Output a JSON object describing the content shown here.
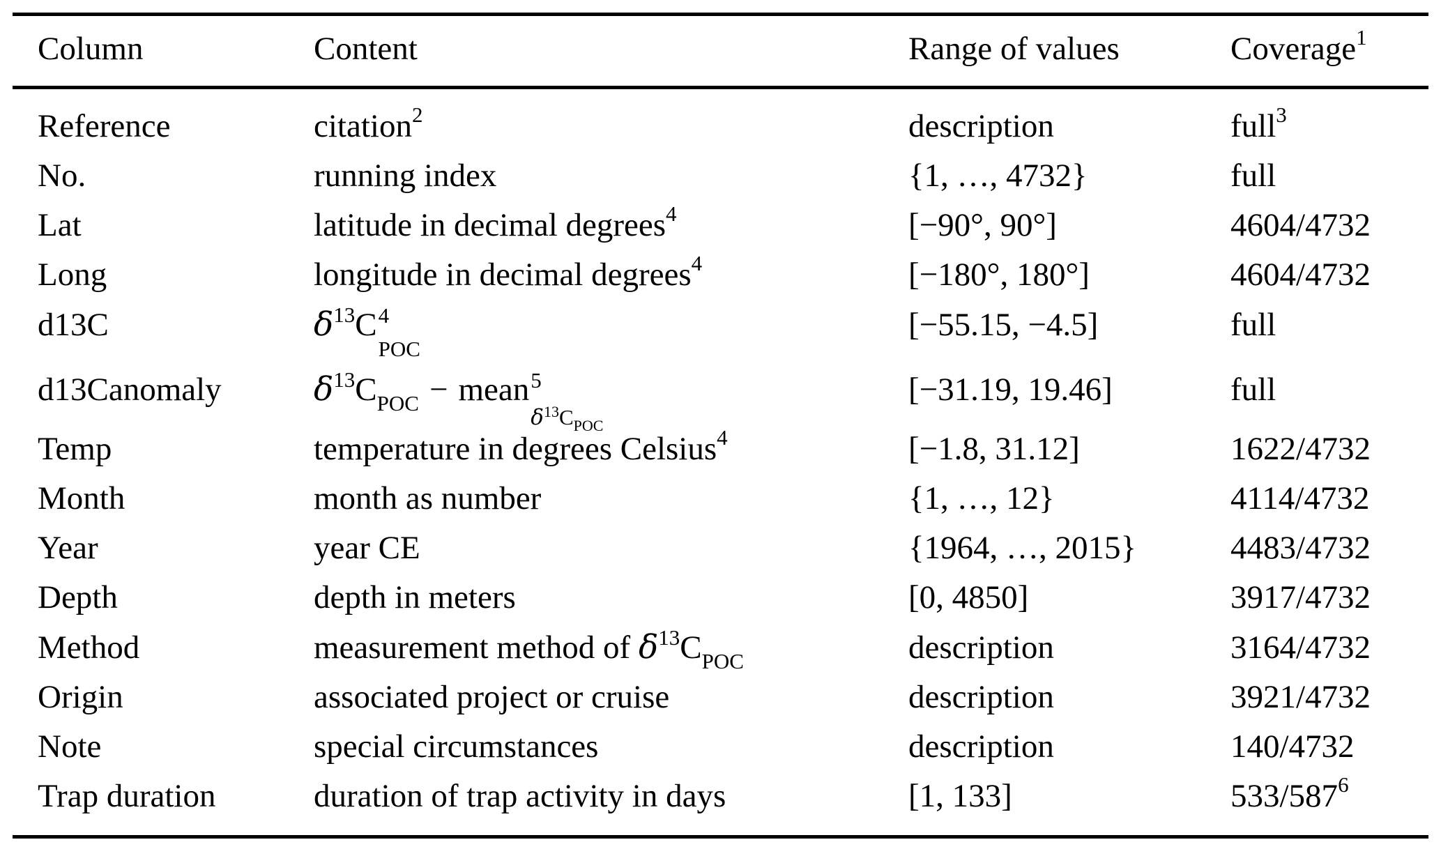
{
  "meta": {
    "background_color": "#ffffff",
    "text_color": "#000000",
    "rule_color": "#000000"
  },
  "table": {
    "headers": {
      "column": "Column",
      "content": "Content",
      "range": "Range of values",
      "coverage": "Coverage",
      "coverage_footnote": "1"
    },
    "rows": [
      {
        "column": "Reference",
        "content": "citation",
        "content_footnote": "2",
        "range": "description",
        "coverage": "full",
        "coverage_footnote": "3"
      },
      {
        "column": "No.",
        "content": "running index",
        "range": "{1, …, 4732}",
        "coverage": "full"
      },
      {
        "column": "Lat",
        "content": "latitude in decimal degrees",
        "content_footnote": "4",
        "range": "[−90°, 90°]",
        "coverage": "4604/4732"
      },
      {
        "column": "Long",
        "content": "longitude in decimal degrees",
        "content_footnote": "4",
        "range": "[−180°, 180°]",
        "coverage": "4604/4732"
      },
      {
        "column": "d13C",
        "formula": {
          "delta": "δ",
          "isotope": "13",
          "element": "C",
          "footnote": "4",
          "subscript": "POC"
        },
        "range": "[−55.15, −4.5]",
        "coverage": "full"
      },
      {
        "column": "d13Canomaly",
        "formula": {
          "delta": "δ",
          "isotope": "13",
          "element": "C",
          "subscript": "POC",
          "operator": "−",
          "mean": "mean",
          "mean_footnote": "5",
          "mean_sub": {
            "delta": "δ",
            "isotope": "13",
            "element": "C",
            "subscript": "POC"
          }
        },
        "range": "[−31.19, 19.46]",
        "coverage": "full"
      },
      {
        "column": "Temp",
        "content": "temperature in degrees Celsius",
        "content_footnote": "4",
        "range": "[−1.8, 31.12]",
        "coverage": "1622/4732"
      },
      {
        "column": "Month",
        "content": "month as number",
        "range": "{1, …, 12}",
        "coverage": "4114/4732"
      },
      {
        "column": "Year",
        "content": "year CE",
        "range": "{1964, …, 2015}",
        "coverage": "4483/4732"
      },
      {
        "column": "Depth",
        "content": "depth in meters",
        "range": "[0, 4850]",
        "coverage": "3917/4732"
      },
      {
        "column": "Method",
        "content": "measurement method of ",
        "formula": {
          "delta": "δ",
          "isotope": "13",
          "element": "C",
          "subscript": "POC"
        },
        "range": "description",
        "coverage": "3164/4732"
      },
      {
        "column": "Origin",
        "content": "associated project or cruise",
        "range": "description",
        "coverage": "3921/4732"
      },
      {
        "column": "Note",
        "content": "special circumstances",
        "range": "description",
        "coverage": "140/4732"
      },
      {
        "column": "Trap duration",
        "content": "duration of trap activity in days",
        "range": "[1, 133]",
        "coverage": "533/587",
        "coverage_footnote": "6"
      }
    ]
  }
}
